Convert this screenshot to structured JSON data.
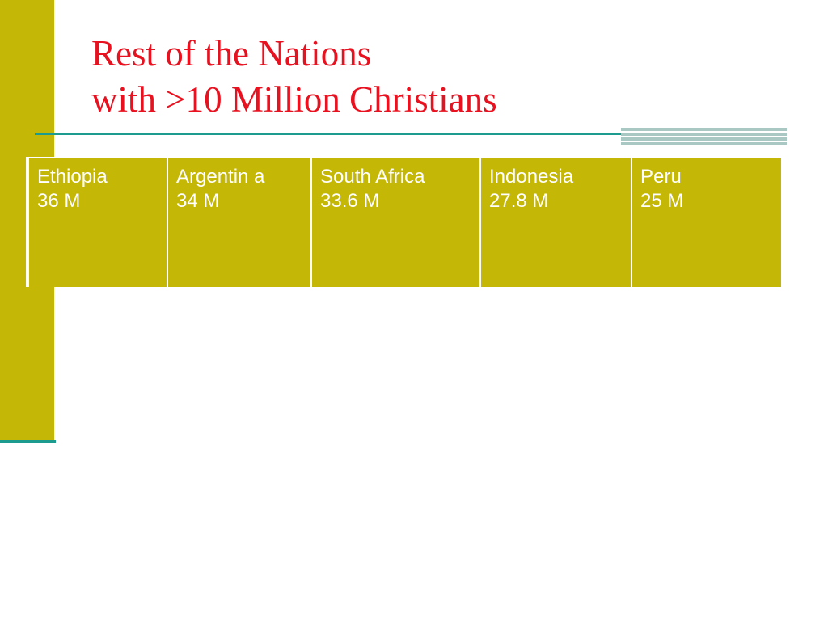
{
  "slide": {
    "title_line1": "Rest of the Nations",
    "title_line2": "with >10 Million Christians"
  },
  "table": {
    "cells": [
      {
        "name": "Ethiopia",
        "value": "36 M"
      },
      {
        "name": "Argentin a",
        "value": "34 M"
      },
      {
        "name": "South Africa",
        "value": "33.6 M"
      },
      {
        "name": "Indonesia",
        "value": "27.8 M"
      },
      {
        "name": "Peru",
        "value": "25 M"
      }
    ]
  },
  "colors": {
    "accent_olive": "#c5b705",
    "title_red": "#e8111f",
    "rule_teal": "#1e9b8f"
  }
}
